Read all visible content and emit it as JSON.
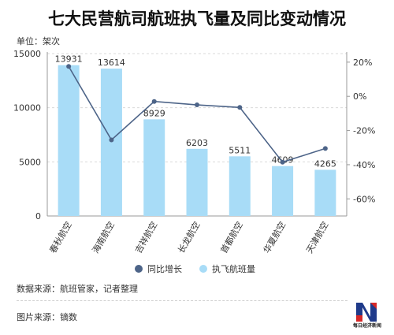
{
  "title": "七大民营航司航班执飞量及同比变动情况",
  "unit_label": "单位：架次",
  "source_label": "数据来源：航班管家，记者整理",
  "credit_label": "图片来源：镝数",
  "logo_text": "每日经济新闻",
  "colors": {
    "bar": "#a8dcf7",
    "line": "#4d6488",
    "grid": "#d9d9d9"
  },
  "chart_data": {
    "type": "bar+line",
    "title": "七大民营航司航班执飞量及同比变动情况",
    "categories": [
      "春秋航空",
      "海南航空",
      "吉祥航空",
      "长龙航空",
      "首都航空",
      "华夏航空",
      "天津航空"
    ],
    "series": [
      {
        "name": "执飞航班量",
        "type": "bar",
        "axis": "left",
        "values": [
          13931,
          13614,
          8929,
          6203,
          5511,
          4609,
          4265
        ]
      },
      {
        "name": "同比增长",
        "type": "line",
        "axis": "right",
        "values": [
          17.5,
          -25.5,
          -3.0,
          -5.0,
          -6.5,
          -38.5,
          -30.5
        ]
      }
    ],
    "y_left": {
      "min": 0,
      "max": 15000,
      "ticks": [
        0,
        5000,
        10000,
        15000
      ]
    },
    "y_right": {
      "min": -70,
      "max": 25,
      "ticks": [
        "20%",
        "0%",
        "-20%",
        "-40%",
        "-60%"
      ],
      "tick_values": [
        20,
        0,
        -20,
        -40,
        -60
      ]
    },
    "legend": {
      "placement": "bottom-center",
      "items": [
        "同比增长",
        "执飞航班量"
      ]
    },
    "grid": true
  }
}
